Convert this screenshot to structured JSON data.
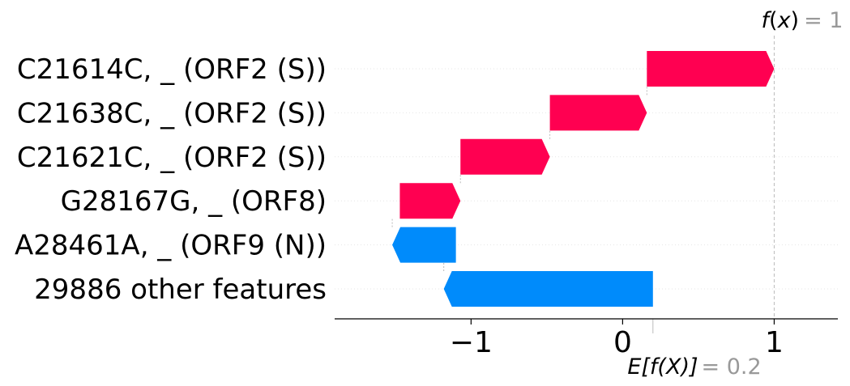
{
  "chart_data": {
    "type": "waterfall",
    "features": [
      {
        "label": "C21614C, _ (ORF2 (S))",
        "start": 0.16,
        "end": 1.0,
        "color": "#ff0051"
      },
      {
        "label": "C21638C, _ (ORF2 (S))",
        "start": -0.48,
        "end": 0.16,
        "color": "#ff0051"
      },
      {
        "label": "C21621C, _ (ORF2 (S))",
        "start": -1.07,
        "end": -0.48,
        "color": "#ff0051"
      },
      {
        "label": "G28167G, _ (ORF8)",
        "start": -1.47,
        "end": -1.07,
        "color": "#ff0051"
      },
      {
        "label": "A28461A, _ (ORF9 (N))",
        "start": -1.1,
        "end": -1.52,
        "color": "#008bfb"
      },
      {
        "label": "29886 other features",
        "start": 0.2,
        "end": -1.18,
        "color": "#008bfb"
      }
    ],
    "x_ticks": [
      {
        "value": -1,
        "label": "−1"
      },
      {
        "value": 0,
        "label": "0"
      },
      {
        "value": 1,
        "label": "1"
      }
    ],
    "xlim": [
      -1.9,
      1.42
    ],
    "fx": {
      "value": 1.0,
      "prefix": "f",
      "arg": "x",
      "value_label": "= 1"
    },
    "efx": {
      "value": 0.2,
      "text": "E[f(X)]",
      "value_label": "= 0.2"
    },
    "colors": {
      "positive": "#ff0051",
      "negative": "#008bfb",
      "reference_line": "#bbbbbb",
      "grid": "#e6e6e6"
    }
  }
}
